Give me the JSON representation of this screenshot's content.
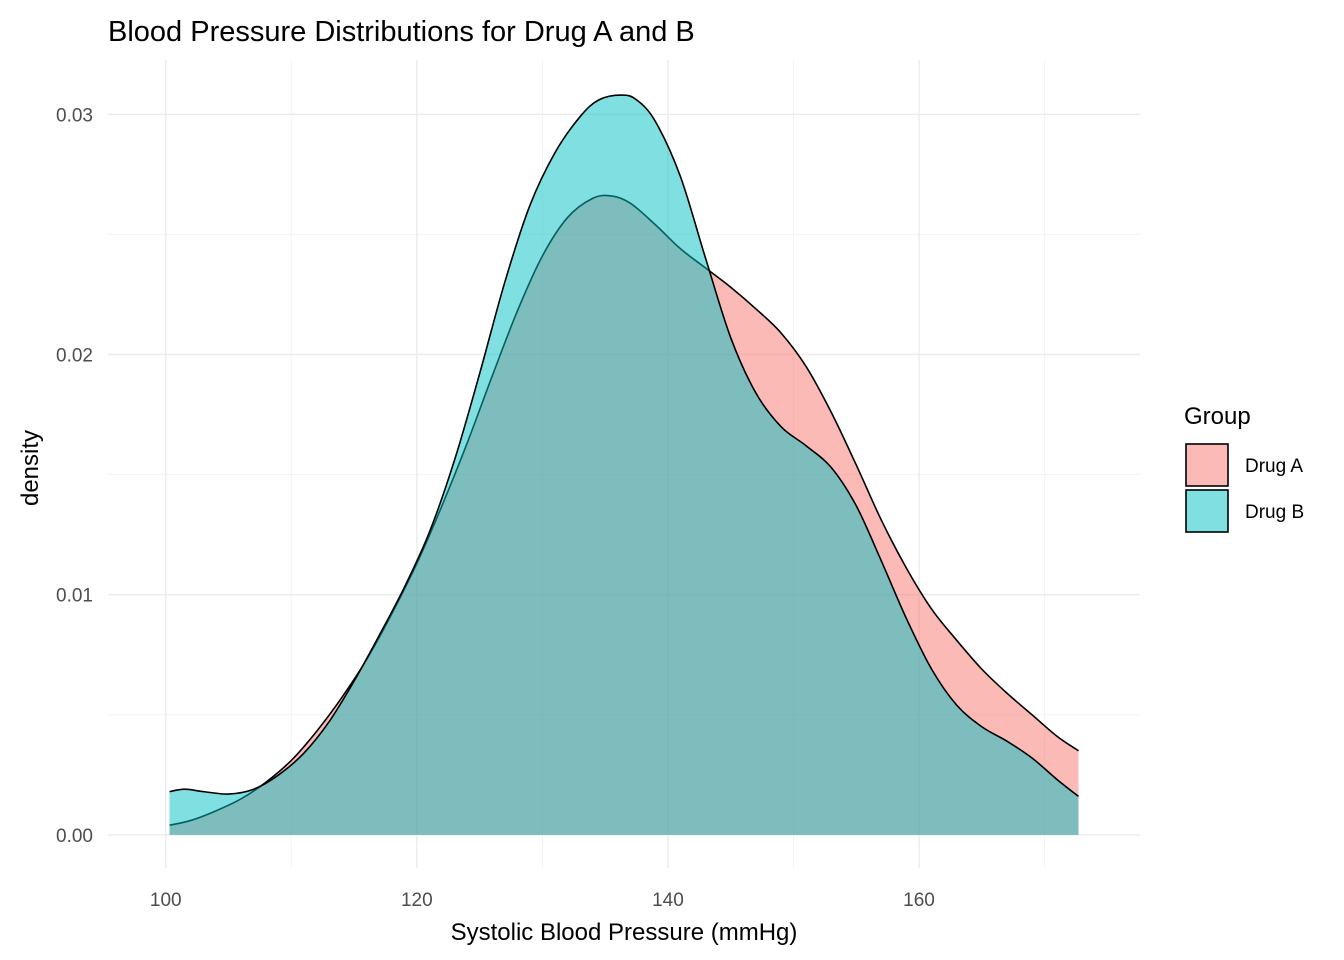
{
  "chart_data": {
    "type": "area",
    "title": "Blood Pressure Distributions for Drug A and B",
    "xlabel": "Systolic Blood Pressure (mmHg)",
    "ylabel": "density",
    "xlim": [
      100,
      173
    ],
    "ylim": [
      0,
      0.031
    ],
    "x_ticks": [
      100,
      120,
      140,
      160
    ],
    "x_tick_labels": [
      "100",
      "120",
      "140",
      "160"
    ],
    "y_ticks": [
      0,
      0.01,
      0.02,
      0.03
    ],
    "y_tick_labels": [
      "0.00",
      "0.01",
      "0.02",
      "0.03"
    ],
    "grid": true,
    "legend": {
      "title": "Group",
      "position": "right"
    },
    "series": [
      {
        "name": "Drug A",
        "color": "#F8766D",
        "points": [
          [
            100.3,
            0.0004
          ],
          [
            102,
            0.0006
          ],
          [
            104,
            0.001
          ],
          [
            106,
            0.0015
          ],
          [
            108,
            0.0022
          ],
          [
            110,
            0.0031
          ],
          [
            112,
            0.0043
          ],
          [
            114,
            0.0057
          ],
          [
            116,
            0.0073
          ],
          [
            118,
            0.0092
          ],
          [
            120,
            0.0113
          ],
          [
            122,
            0.0137
          ],
          [
            124,
            0.0163
          ],
          [
            126,
            0.0191
          ],
          [
            128,
            0.0218
          ],
          [
            130,
            0.0241
          ],
          [
            132,
            0.0257
          ],
          [
            134,
            0.0265
          ],
          [
            135.5,
            0.0266
          ],
          [
            137,
            0.0263
          ],
          [
            139,
            0.0254
          ],
          [
            141,
            0.0244
          ],
          [
            143,
            0.0236
          ],
          [
            145,
            0.0228
          ],
          [
            147,
            0.0219
          ],
          [
            149,
            0.0209
          ],
          [
            151,
            0.0195
          ],
          [
            153,
            0.0176
          ],
          [
            155,
            0.0154
          ],
          [
            157,
            0.0131
          ],
          [
            159,
            0.0111
          ],
          [
            161,
            0.0094
          ],
          [
            163,
            0.0081
          ],
          [
            165,
            0.0069
          ],
          [
            167,
            0.0059
          ],
          [
            169,
            0.005
          ],
          [
            171,
            0.0041
          ],
          [
            172.7,
            0.0035
          ]
        ]
      },
      {
        "name": "Drug B",
        "color": "#00BFC4",
        "points": [
          [
            100.3,
            0.0018
          ],
          [
            101.5,
            0.0019
          ],
          [
            103,
            0.0018
          ],
          [
            105,
            0.0017
          ],
          [
            107,
            0.0019
          ],
          [
            109,
            0.0025
          ],
          [
            111,
            0.0034
          ],
          [
            113,
            0.0047
          ],
          [
            115,
            0.0064
          ],
          [
            117,
            0.0083
          ],
          [
            119,
            0.0103
          ],
          [
            121,
            0.0126
          ],
          [
            123,
            0.0156
          ],
          [
            125,
            0.0192
          ],
          [
            127,
            0.023
          ],
          [
            129,
            0.0262
          ],
          [
            131,
            0.0284
          ],
          [
            133,
            0.0299
          ],
          [
            134.5,
            0.0306
          ],
          [
            136.3,
            0.0308
          ],
          [
            137.5,
            0.0306
          ],
          [
            139,
            0.0297
          ],
          [
            141,
            0.0274
          ],
          [
            143,
            0.024
          ],
          [
            145,
            0.0207
          ],
          [
            147,
            0.0184
          ],
          [
            149,
            0.017
          ],
          [
            151,
            0.0162
          ],
          [
            153,
            0.0153
          ],
          [
            155,
            0.0137
          ],
          [
            157,
            0.0114
          ],
          [
            159,
            0.009
          ],
          [
            161,
            0.0069
          ],
          [
            163,
            0.0054
          ],
          [
            165,
            0.0045
          ],
          [
            167,
            0.0039
          ],
          [
            169,
            0.0032
          ],
          [
            171,
            0.0023
          ],
          [
            172.7,
            0.0016
          ]
        ]
      }
    ]
  }
}
